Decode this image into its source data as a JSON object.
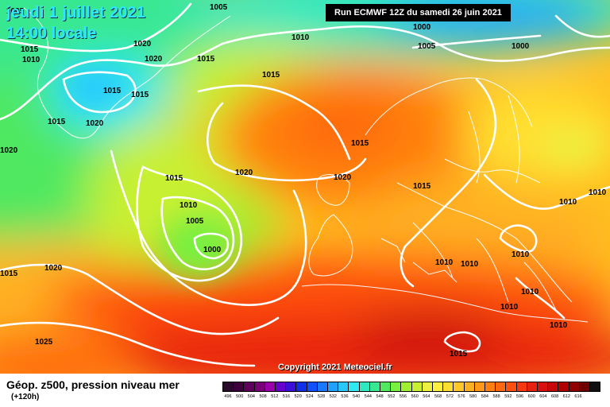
{
  "header": {
    "date": "jeudi 1 juillet 2021",
    "time": "14:00 locale",
    "run": "Run ECMWF 12Z du samedi 26 juin 2021"
  },
  "copyright": "Copyright 2021 Meteociel.fr",
  "legend": {
    "title": "Géop. z500, pression niveau mer",
    "lead": "(+120h)",
    "colors": [
      "#2a0a2a",
      "#3d003d",
      "#5c005c",
      "#7a007a",
      "#9900aa",
      "#6600cc",
      "#3a10d8",
      "#1030e8",
      "#1050ff",
      "#1878ff",
      "#20a0ff",
      "#28c8ff",
      "#30e8f0",
      "#30e8c0",
      "#38e890",
      "#50e860",
      "#78f040",
      "#a0f030",
      "#c8f030",
      "#ecf040",
      "#fff040",
      "#ffe030",
      "#ffc828",
      "#ffb020",
      "#ff9818",
      "#ff8010",
      "#ff6810",
      "#ff5010",
      "#f83810",
      "#e82010",
      "#d81010",
      "#c80808",
      "#b00000",
      "#900000",
      "#700000",
      "#101010"
    ],
    "ticks": [
      "496",
      "500",
      "504",
      "508",
      "512",
      "516",
      "520",
      "524",
      "528",
      "532",
      "536",
      "540",
      "544",
      "548",
      "552",
      "556",
      "560",
      "564",
      "568",
      "572",
      "576",
      "580",
      "584",
      "588",
      "592",
      "596",
      "600",
      "604",
      "608",
      "612",
      "616"
    ]
  },
  "isobar_labels": [
    "1005",
    "1005",
    "1020",
    "1010",
    "1020",
    "1015",
    "1010",
    "1015",
    "1015",
    "1020",
    "1015",
    "1015",
    "1020",
    "1015",
    "1020",
    "1010",
    "1005",
    "1000",
    "1015",
    "1020",
    "1020",
    "1015",
    "1010",
    "1025",
    "1000",
    "1005",
    "1000",
    "1010",
    "1015",
    "1010",
    "1010",
    "1010",
    "1010",
    "1010",
    "1010",
    "1015",
    "1015"
  ]
}
